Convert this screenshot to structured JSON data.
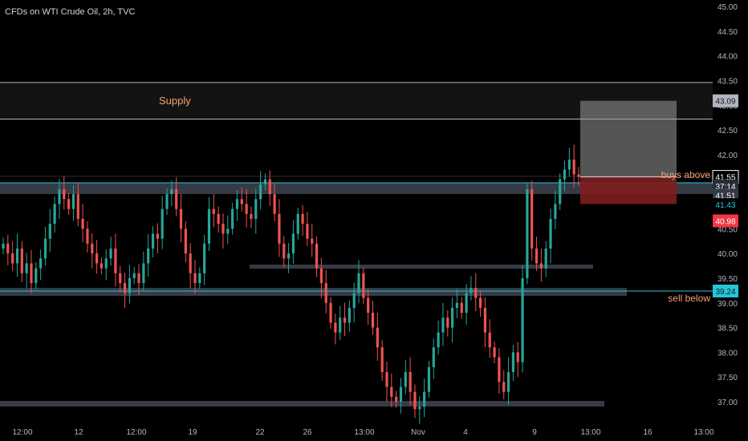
{
  "header": {
    "title": "CFDs on WTI Crude Oil, 2h, TVC"
  },
  "annotations": {
    "supply": "Supply",
    "buys_above": "buys above",
    "sell_below": "sell below"
  },
  "price_axis": {
    "ticks": [
      "45.00",
      "44.50",
      "44.00",
      "43.50",
      "43.00",
      "42.50",
      "42.00",
      "41.50",
      "40.50",
      "40.00",
      "39.50",
      "39.00",
      "38.50",
      "38.00",
      "37.50",
      "37.00"
    ],
    "tick_values": [
      45.0,
      44.5,
      44.0,
      43.5,
      43.0,
      42.5,
      42.0,
      41.5,
      40.5,
      40.0,
      39.5,
      39.0,
      38.5,
      38.0,
      37.5,
      37.0
    ],
    "labels": [
      {
        "text": "43.09",
        "value": 43.09,
        "bg": "#b2b5be",
        "fg": "#131722"
      },
      {
        "text": "41.55",
        "value": 41.55,
        "bg": "#000000",
        "fg": "#ffffff",
        "border": "#ffffff"
      },
      {
        "text": "37:14",
        "value": 41.365,
        "bg": "#2a2e39",
        "fg": "#ffffff"
      },
      {
        "text": "41.51",
        "value": 41.18,
        "bg": "#363a45",
        "fg": "#ffffff"
      },
      {
        "text": "41.43",
        "value": 40.99,
        "bg": "#000000",
        "fg": "#26c6da"
      },
      {
        "text": "40.98",
        "value": 40.66,
        "bg": "#f23645",
        "fg": "#ffffff"
      },
      {
        "text": "39.24",
        "value": 39.24,
        "bg": "#26c6da",
        "fg": "#131722"
      }
    ]
  },
  "time_axis": {
    "ticks": [
      "12:00",
      "12",
      "12:00",
      "19",
      "22",
      "26",
      "13:00",
      "Nov",
      "4",
      "9",
      "13:00",
      "16",
      "13:00"
    ]
  },
  "colors": {
    "up": "#26a69a",
    "down": "#ef5350",
    "cyan": "#26c6da",
    "annotation": "#f7a072",
    "zone": "#363a45"
  },
  "chart_data": {
    "type": "candlestick",
    "title": "CFDs on WTI Crude Oil, 2h, TVC",
    "ylim": [
      36.84,
      45.1
    ],
    "levels": [
      {
        "name": "Supply",
        "low": 42.72,
        "high": 43.46
      },
      {
        "name": "buys above",
        "value": 41.55
      },
      {
        "name": "sell below",
        "value": 39.24
      }
    ],
    "support_resistance_bars": [
      41.58,
      41.4,
      39.8,
      39.2,
      36.98
    ],
    "position": {
      "entry": 41.55,
      "target": 43.09,
      "stop": 41.0
    },
    "close_series": [
      40.2,
      40.0,
      39.8,
      40.1,
      39.6,
      39.8,
      39.4,
      39.7,
      39.9,
      40.3,
      40.6,
      41.0,
      41.3,
      41.1,
      40.9,
      41.2,
      40.7,
      40.5,
      40.2,
      40.0,
      39.8,
      39.7,
      39.9,
      40.1,
      39.6,
      39.4,
      39.2,
      39.5,
      39.6,
      39.4,
      39.8,
      40.1,
      40.4,
      40.3,
      40.9,
      41.2,
      41.3,
      40.9,
      40.5,
      40.0,
      39.6,
      39.4,
      39.6,
      40.2,
      40.9,
      40.8,
      40.6,
      40.4,
      40.5,
      40.9,
      41.1,
      41.0,
      40.8,
      40.7,
      41.1,
      41.4,
      41.5,
      41.2,
      40.8,
      40.2,
      39.9,
      40.0,
      40.4,
      40.8,
      40.6,
      40.3,
      40.2,
      39.7,
      39.4,
      39.0,
      38.6,
      38.4,
      38.7,
      38.6,
      38.9,
      39.2,
      39.6,
      39.1,
      38.8,
      38.5,
      38.1,
      37.6,
      37.3,
      37.1,
      37.0,
      37.3,
      37.6,
      37.2,
      36.85,
      36.9,
      37.2,
      37.7,
      38.1,
      38.4,
      38.7,
      38.5,
      38.9,
      39.0,
      38.8,
      39.2,
      39.3,
      39.1,
      38.9,
      38.4,
      38.1,
      37.9,
      37.4,
      37.2,
      37.6,
      38.0,
      37.8,
      39.5,
      41.3,
      40.1,
      39.8,
      39.7,
      40.1,
      40.7,
      41.0,
      41.5,
      41.7,
      41.9,
      41.6,
      41.55
    ]
  }
}
